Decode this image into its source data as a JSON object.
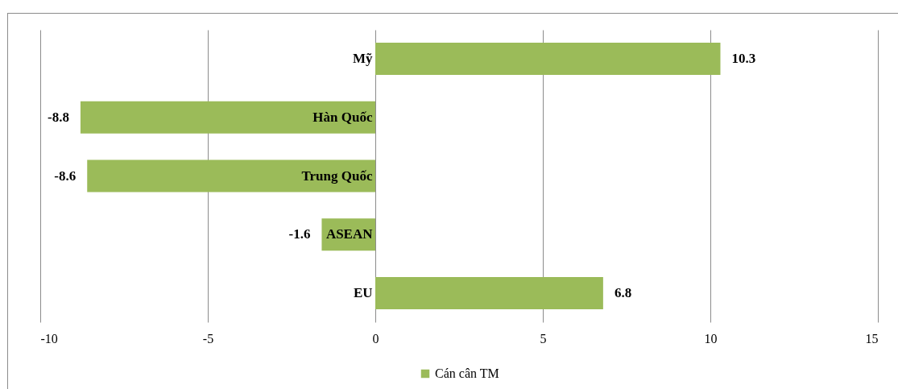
{
  "chart_data": {
    "type": "bar",
    "orientation": "horizontal",
    "categories": [
      "Mỹ",
      "Hàn Quốc",
      "Trung Quốc",
      "ASEAN",
      "EU"
    ],
    "series": [
      {
        "name": "Cán cân TM",
        "color": "#9bbb59",
        "values": [
          10.3,
          -8.8,
          -8.6,
          -1.6,
          6.8
        ]
      }
    ],
    "xlim": [
      -10,
      15
    ],
    "xticks": [
      -10,
      -5,
      0,
      5,
      10,
      15
    ],
    "grid": "x",
    "legend": "bottom",
    "data_labels": true
  }
}
